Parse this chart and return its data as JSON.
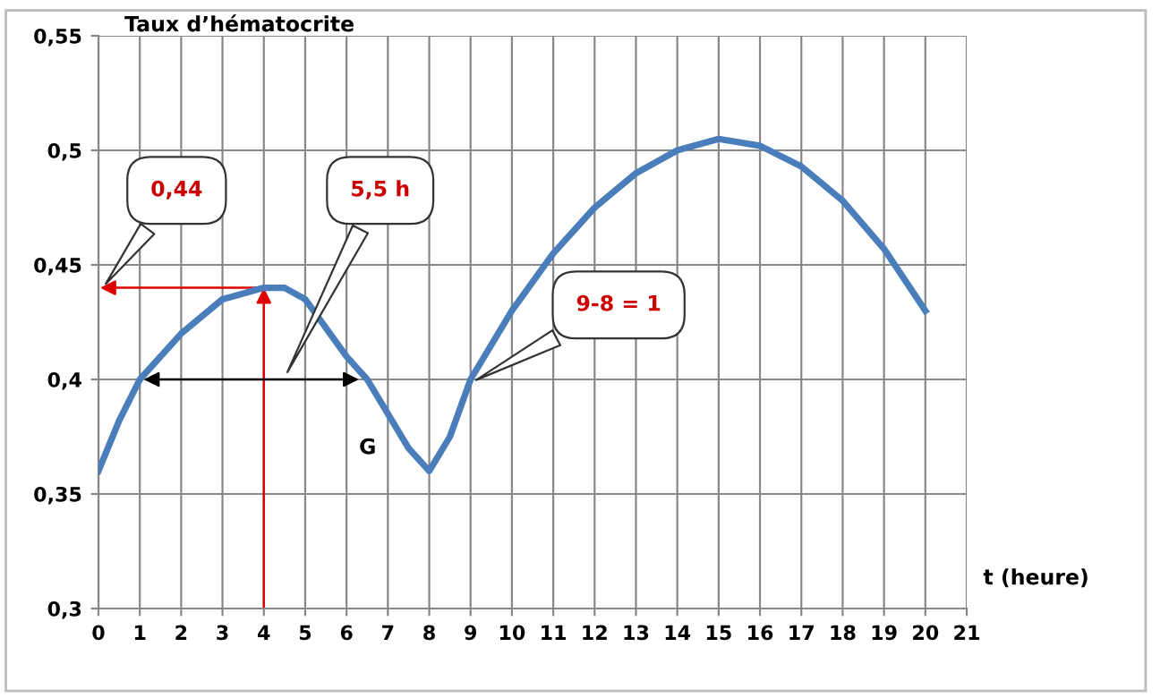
{
  "chart_data": {
    "type": "line",
    "ylabel": "Taux d’hématocrite",
    "xlabel": "t (heure)",
    "x": [
      0,
      0.5,
      1,
      2,
      3,
      4,
      4.5,
      5,
      6,
      6.5,
      7,
      7.5,
      8,
      8.5,
      9,
      10,
      11,
      12,
      13,
      14,
      15,
      16,
      17,
      18,
      19,
      20
    ],
    "series": [
      {
        "color": "#4a7ebb",
        "values": [
          0.36,
          0.382,
          0.4,
          0.42,
          0.435,
          0.44,
          0.44,
          0.435,
          0.41,
          0.4,
          0.385,
          0.37,
          0.36,
          0.375,
          0.4,
          0.43,
          0.455,
          0.475,
          0.49,
          0.5,
          0.505,
          0.502,
          0.493,
          0.478,
          0.457,
          0.43
        ]
      }
    ],
    "xlim": [
      0,
      21
    ],
    "ylim": [
      0.3,
      0.55
    ],
    "xticks": [
      0,
      1,
      2,
      3,
      4,
      5,
      6,
      7,
      8,
      9,
      10,
      11,
      12,
      13,
      14,
      15,
      16,
      17,
      18,
      19,
      20,
      21
    ],
    "yticks": [
      {
        "value": 0.3,
        "label": "0,3"
      },
      {
        "value": 0.35,
        "label": "0,35"
      },
      {
        "value": 0.4,
        "label": "0,4"
      },
      {
        "value": 0.45,
        "label": "0,45"
      },
      {
        "value": 0.5,
        "label": "0,5"
      },
      {
        "value": 0.55,
        "label": "0,55"
      }
    ],
    "grid": true,
    "legend": false,
    "marker": "none",
    "line_style": "solid",
    "annotations": [
      "0,44",
      "5,5 h",
      "9-8 = 1",
      "G"
    ]
  }
}
